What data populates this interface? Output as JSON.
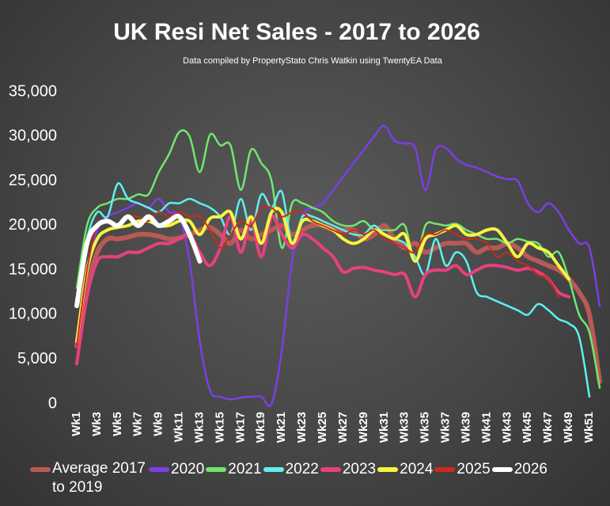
{
  "chart_data": {
    "type": "line",
    "title": "UK  Resi Net Sales - 2017 to 2026",
    "subtitle": "Data compiled by PropertyStato Chris Watkin using TwentyEA Data",
    "categories": [
      "Wk1",
      null,
      "Wk3",
      null,
      "Wk5",
      null,
      "Wk7",
      null,
      "Wk9",
      null,
      "Wk11",
      null,
      "Wk13",
      null,
      "Wk15",
      null,
      "Wk17",
      null,
      "Wk19",
      null,
      "Wk21",
      null,
      "Wk23",
      null,
      "Wk25",
      null,
      "Wk27",
      null,
      "Wk29",
      null,
      "Wk31",
      null,
      "Wk33",
      null,
      "Wk35",
      null,
      "Wk37",
      null,
      "Wk39",
      null,
      "Wk41",
      null,
      "Wk43",
      null,
      "Wk45",
      null,
      "Wk47",
      null,
      "Wk49",
      null,
      "Wk51",
      null
    ],
    "ylim": [
      0,
      35000
    ],
    "yticks": [
      0,
      {
        "value": 5000,
        "label": "5,000"
      },
      {
        "value": 10000,
        "label": "10,000"
      },
      {
        "value": 15000,
        "label": "15,000"
      },
      {
        "value": 20000,
        "label": "20,000"
      },
      {
        "value": 25000,
        "label": "25,000"
      },
      {
        "value": 30000,
        "label": "30,000"
      },
      {
        "value": 35000,
        "label": "35,000"
      }
    ],
    "grid": false,
    "legend": "bottom",
    "series": [
      {
        "name": "Average 2017 to 2019",
        "color": "#b85a55",
        "values": [
          6500,
          13000,
          17000,
          18500,
          18500,
          18700,
          19000,
          19000,
          18800,
          18500,
          18600,
          19000,
          19500,
          19800,
          19000,
          18000,
          19500,
          18500,
          19000,
          19500,
          20000,
          19000,
          19500,
          20000,
          20000,
          19500,
          19500,
          19500,
          18500,
          19000,
          20000,
          18500,
          17500,
          18000,
          17000,
          17500,
          18000,
          18000,
          18000,
          17000,
          17500,
          17500,
          18000,
          17500,
          16500,
          16000,
          15500,
          15000,
          14000,
          12500,
          10000,
          2500
        ]
      },
      {
        "name": "2020",
        "color": "#7b3fe4",
        "values": [
          null,
          15000,
          19500,
          21000,
          21500,
          22000,
          22500,
          22000,
          23000,
          21500,
          21000,
          16000,
          7000,
          1500,
          800,
          500,
          700,
          800,
          800,
          0,
          6000,
          16000,
          21000,
          22000,
          22500,
          24000,
          25500,
          27000,
          28500,
          30000,
          31200,
          29500,
          29200,
          28700,
          24000,
          28500,
          28700,
          27500,
          26800,
          26500,
          26000,
          25500,
          25200,
          25000,
          22500,
          21500,
          22500,
          21500,
          19500,
          18000,
          17500,
          11000
        ]
      },
      {
        "name": "2021",
        "color": "#6ee86e",
        "values": [
          13000,
          20000,
          22000,
          22500,
          23000,
          23000,
          23500,
          23500,
          26000,
          28000,
          30500,
          30000,
          26000,
          30200,
          29000,
          29000,
          24000,
          28500,
          27000,
          25000,
          17500,
          22500,
          22500,
          22000,
          21500,
          20500,
          20000,
          20000,
          20500,
          19500,
          19500,
          19500,
          20000,
          16000,
          20000,
          20200,
          20000,
          20200,
          19500,
          19000,
          18500,
          18500,
          18000,
          18500,
          18200,
          18000,
          16500,
          17000,
          14000,
          10000,
          8000,
          1800
        ]
      },
      {
        "name": "2022",
        "color": "#5ff0f0",
        "values": [
          11000,
          18500,
          21500,
          21000,
          24700,
          23000,
          22500,
          22000,
          21500,
          22500,
          22500,
          23000,
          22500,
          22000,
          21000,
          19000,
          23000,
          19500,
          23500,
          22000,
          23800,
          18000,
          21000,
          21000,
          20500,
          20000,
          19500,
          19000,
          19000,
          20000,
          19000,
          18500,
          18000,
          16500,
          14500,
          18500,
          15500,
          17000,
          16000,
          12500,
          12000,
          11500,
          11000,
          10500,
          10000,
          11200,
          10500,
          9500,
          9000,
          7500,
          800,
          null
        ]
      },
      {
        "name": "2023",
        "color": "#e8407f",
        "values": [
          4500,
          12000,
          16000,
          16500,
          16500,
          17000,
          17000,
          17500,
          18000,
          18000,
          18500,
          19000,
          17000,
          15500,
          17500,
          21000,
          17000,
          20500,
          16500,
          21000,
          19000,
          17500,
          19000,
          18500,
          17500,
          16500,
          14800,
          15200,
          15300,
          15000,
          14800,
          14500,
          14500,
          12000,
          14500,
          15000,
          15000,
          15500,
          14500,
          15000,
          15500,
          15500,
          15300,
          15000,
          15200,
          14800,
          14000,
          12500,
          12000,
          null,
          null,
          null
        ]
      },
      {
        "name": "2024",
        "color": "#f5f542",
        "values": [
          7000,
          15000,
          18500,
          19500,
          19800,
          20000,
          20500,
          20500,
          20000,
          20000,
          20500,
          20500,
          19000,
          20800,
          21000,
          21500,
          18500,
          21000,
          18000,
          21500,
          21500,
          18000,
          20500,
          20500,
          20000,
          19500,
          18500,
          18000,
          18500,
          19500,
          19000,
          18500,
          19000,
          16000,
          18500,
          19000,
          19500,
          20000,
          19000,
          19000,
          19500,
          19500,
          18000,
          16500,
          18000,
          17500,
          17000,
          15500,
          14000,
          null,
          null,
          null
        ]
      },
      {
        "name": "2025",
        "color": "#cc2a1e",
        "values": [
          6500,
          15000,
          20000,
          20500,
          20000,
          21000,
          21000,
          20500,
          21500,
          21000,
          21500,
          21000,
          21000,
          19500,
          17500,
          19000,
          20500,
          20000,
          22000,
          22000,
          21000,
          21500,
          21500,
          20500,
          20000,
          19500,
          19000,
          19500,
          19000,
          19500,
          18500,
          18000,
          17500,
          17000,
          19000,
          19000,
          19500,
          19000,
          18500,
          18500,
          18000,
          16500,
          17000,
          16000,
          15500,
          14500,
          14000,
          12000,
          null,
          null,
          null,
          null
        ]
      },
      {
        "name": "2026",
        "color": "#ffffff",
        "values": [
          11000,
          18000,
          20000,
          20500,
          20000,
          21000,
          20000,
          21000,
          20000,
          20500,
          21000,
          19000,
          16000,
          null,
          null,
          null,
          null,
          null,
          null,
          null,
          null,
          null,
          null,
          null,
          null,
          null,
          null,
          null,
          null,
          null,
          null,
          null,
          null,
          null,
          null,
          null,
          null,
          null,
          null,
          null,
          null,
          null,
          null,
          null,
          null,
          null,
          null,
          null,
          null,
          null,
          null,
          null
        ]
      }
    ]
  }
}
